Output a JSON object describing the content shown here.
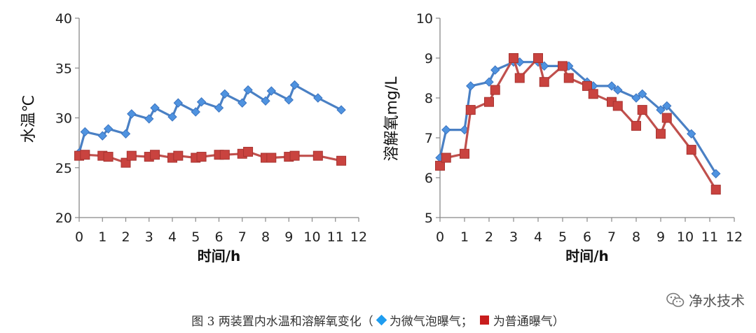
{
  "chart_data": [
    {
      "type": "line",
      "ylabel": "水温℃",
      "xlabel": "时间/h",
      "xlim": [
        0,
        12
      ],
      "ylim": [
        20,
        40
      ],
      "xticks": [
        "0",
        "1",
        "2",
        "3",
        "4",
        "5",
        "6",
        "7",
        "8",
        "9",
        "10",
        "11",
        "12"
      ],
      "yticks": [
        "20",
        "25",
        "30",
        "35",
        "40"
      ],
      "series": [
        {
          "name": "微气泡曝气",
          "color": "#4a80c4",
          "marker": "diamond",
          "x": [
            0,
            0.25,
            1,
            1.25,
            2,
            2.25,
            3,
            3.25,
            4,
            4.25,
            5,
            5.25,
            6,
            6.25,
            7,
            7.25,
            8,
            8.25,
            9,
            9.25,
            10.25,
            11.25
          ],
          "y": [
            26.5,
            28.6,
            28.2,
            28.9,
            28.4,
            30.4,
            29.9,
            31.0,
            30.1,
            31.5,
            30.6,
            31.6,
            31.0,
            32.4,
            31.5,
            32.8,
            31.7,
            32.7,
            31.8,
            33.3,
            32.0,
            30.8
          ]
        },
        {
          "name": "普通曝气",
          "color": "#c0504d",
          "marker": "square",
          "x": [
            0,
            0.25,
            1,
            1.25,
            2,
            2.25,
            3,
            3.25,
            4,
            4.25,
            5,
            5.25,
            6,
            6.25,
            7,
            7.25,
            8,
            8.25,
            9,
            9.25,
            10.25,
            11.25
          ],
          "y": [
            26.2,
            26.3,
            26.2,
            26.1,
            25.5,
            26.2,
            26.1,
            26.3,
            26.0,
            26.2,
            26.0,
            26.1,
            26.3,
            26.3,
            26.4,
            26.6,
            26.0,
            26.0,
            26.1,
            26.2,
            26.2,
            25.7
          ]
        }
      ]
    },
    {
      "type": "line",
      "ylabel": "溶解氧mg/L",
      "xlabel": "时间/h",
      "xlim": [
        0,
        12
      ],
      "ylim": [
        5,
        10
      ],
      "xticks": [
        "0",
        "1",
        "2",
        "3",
        "4",
        "5",
        "6",
        "7",
        "8",
        "9",
        "10",
        "11",
        "12"
      ],
      "yticks": [
        "5",
        "6",
        "7",
        "8",
        "9",
        "10"
      ],
      "series": [
        {
          "name": "微气泡曝气",
          "color": "#4a80c4",
          "marker": "diamond",
          "x": [
            0,
            0.25,
            1,
            1.25,
            2,
            2.25,
            3,
            3.25,
            4,
            4.25,
            5,
            5.25,
            6,
            6.25,
            7,
            7.25,
            8,
            8.25,
            9,
            9.25,
            10.25,
            11.25
          ],
          "y": [
            6.5,
            7.2,
            7.2,
            8.3,
            8.4,
            8.7,
            8.9,
            8.9,
            8.9,
            8.8,
            8.8,
            8.8,
            8.4,
            8.3,
            8.3,
            8.2,
            8.0,
            8.1,
            7.7,
            7.8,
            7.1,
            6.1
          ]
        },
        {
          "name": "普通曝气",
          "color": "#c0504d",
          "marker": "square",
          "x": [
            0,
            0.25,
            1,
            1.25,
            2,
            2.25,
            3,
            3.25,
            4,
            4.25,
            5,
            5.25,
            6,
            6.25,
            7,
            7.25,
            8,
            8.25,
            9,
            9.25,
            10.25,
            11.25
          ],
          "y": [
            6.3,
            6.5,
            6.6,
            7.7,
            7.9,
            8.2,
            9.0,
            8.5,
            9.0,
            8.4,
            8.8,
            8.5,
            8.3,
            8.1,
            7.9,
            7.8,
            7.3,
            7.7,
            7.1,
            7.5,
            6.7,
            5.7
          ]
        }
      ]
    }
  ],
  "caption": {
    "prefix": "图 3 两装置内水温和溶解氧变化（",
    "legend1": "为微气泡曝气；",
    "legend2": "为普通曝气）"
  },
  "watermark": "净水技术",
  "colors": {
    "marker_blue": "#1f9df0",
    "marker_red": "#c81d1d"
  }
}
